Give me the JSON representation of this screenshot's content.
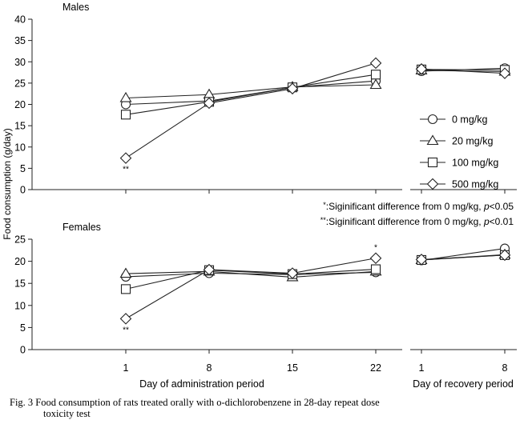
{
  "figure": {
    "caption_line1": "Fig. 3   Food consumption of rats treated orally with o-dichlorobenzene in 28-day repeat dose",
    "caption_line2": "toxicity test"
  },
  "chart_data": {
    "type": "line",
    "ylabel": "Food consumption (g/day)",
    "x_groups": [
      {
        "name": "Day of administration period",
        "days": [
          "1",
          "8",
          "15",
          "22"
        ]
      },
      {
        "name": "Day of recovery period",
        "days": [
          "1",
          "8"
        ]
      }
    ],
    "legend": [
      {
        "label": "0 mg/kg",
        "marker": "circle"
      },
      {
        "label": "20 mg/kg",
        "marker": "triangle"
      },
      {
        "label": "100 mg/kg",
        "marker": "square"
      },
      {
        "label": "500 mg/kg",
        "marker": "diamond"
      }
    ],
    "significance_notes": [
      {
        "symbol": "*",
        "text": ":Siginificant difference from 0 mg/kg, ",
        "p": "p",
        "rest": "<0.05"
      },
      {
        "symbol": "**",
        "text": ":Siginificant difference from 0 mg/kg, ",
        "p": "p",
        "rest": "<0.01"
      }
    ],
    "panels": [
      {
        "title": "Males",
        "ylim": [
          0,
          40
        ],
        "yticks": [
          0,
          5,
          10,
          15,
          20,
          25,
          30,
          35,
          40
        ],
        "series": [
          {
            "name": "0 mg/kg",
            "marker": "circle",
            "admin": [
              20.0,
              20.8,
              24.0,
              25.5
            ],
            "recovery": [
              27.8,
              28.5
            ]
          },
          {
            "name": "20 mg/kg",
            "marker": "triangle",
            "admin": [
              21.5,
              22.3,
              24.1,
              24.6
            ],
            "recovery": [
              28.0,
              27.7
            ]
          },
          {
            "name": "100 mg/kg",
            "marker": "square",
            "admin": [
              17.6,
              20.6,
              24.0,
              27.0
            ],
            "recovery": [
              28.2,
              28.1
            ]
          },
          {
            "name": "500 mg/kg",
            "marker": "diamond",
            "admin": [
              7.4,
              20.3,
              23.7,
              29.7
            ],
            "recovery": [
              28.3,
              27.3
            ]
          }
        ],
        "annotations": [
          {
            "group": 0,
            "index": 0,
            "value": 7.4,
            "text": "**",
            "position": "below"
          }
        ]
      },
      {
        "title": "Females",
        "ylim": [
          0,
          25
        ],
        "yticks": [
          0,
          5,
          10,
          15,
          20,
          25
        ],
        "series": [
          {
            "name": "0 mg/kg",
            "marker": "circle",
            "admin": [
              16.5,
              17.3,
              17.0,
              17.5
            ],
            "recovery": [
              20.2,
              22.9
            ]
          },
          {
            "name": "20 mg/kg",
            "marker": "triangle",
            "admin": [
              17.2,
              17.7,
              16.4,
              17.7
            ],
            "recovery": [
              20.3,
              21.5
            ]
          },
          {
            "name": "100 mg/kg",
            "marker": "square",
            "admin": [
              13.7,
              18.0,
              17.1,
              18.2
            ],
            "recovery": [
              20.3,
              21.4
            ]
          },
          {
            "name": "500 mg/kg",
            "marker": "diamond",
            "admin": [
              7.0,
              18.1,
              17.3,
              20.7
            ],
            "recovery": [
              20.4,
              21.4
            ]
          }
        ],
        "annotations": [
          {
            "group": 0,
            "index": 0,
            "value": 7.0,
            "text": "**",
            "position": "below"
          },
          {
            "group": 0,
            "index": 3,
            "value": 20.7,
            "text": "*",
            "position": "above"
          }
        ]
      }
    ]
  }
}
